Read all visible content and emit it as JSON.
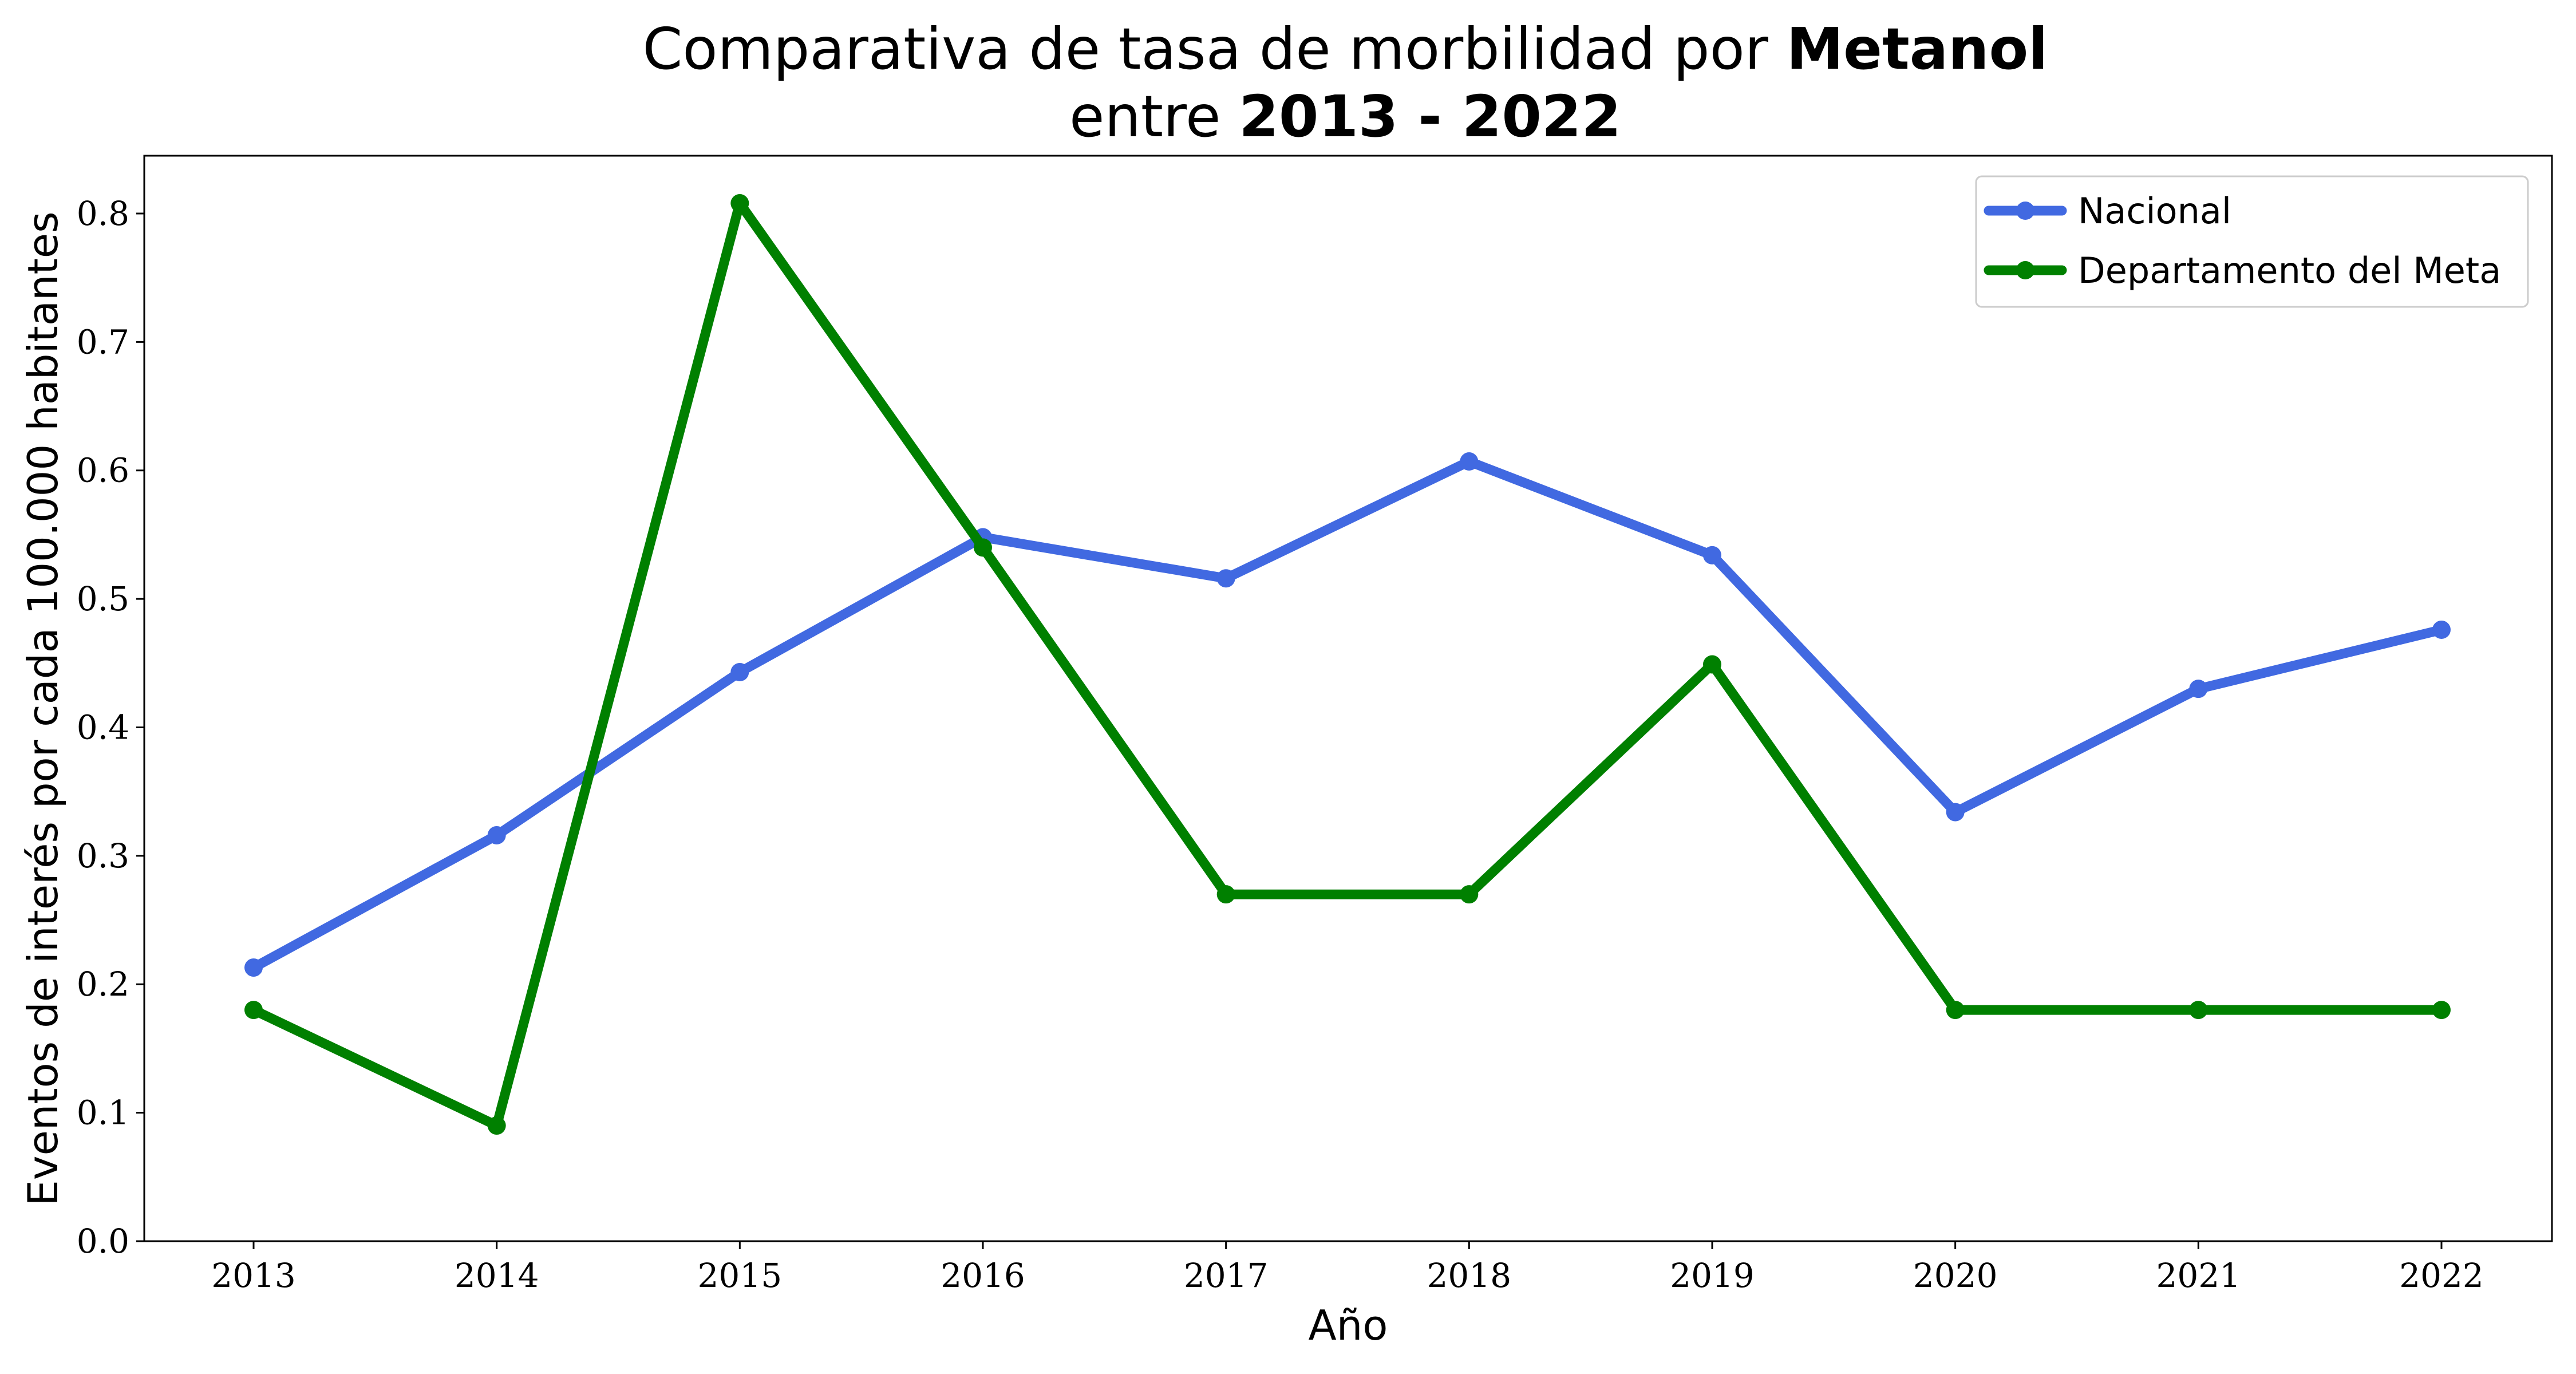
{
  "chart_data": {
    "type": "line",
    "title": {
      "line1_prefix": "Comparativa de tasa de morbilidad por ",
      "line1_bold": "Metanol",
      "line2_prefix": "entre ",
      "line2_bold": "2013 - 2022"
    },
    "xlabel": "Año",
    "ylabel": "Eventos de interés por cada 100.000 habitantes",
    "categories": [
      "2013",
      "2014",
      "2015",
      "2016",
      "2017",
      "2018",
      "2019",
      "2020",
      "2021",
      "2022"
    ],
    "ylim": [
      0.0,
      0.845
    ],
    "yticks": [
      "0.0",
      "0.1",
      "0.2",
      "0.3",
      "0.4",
      "0.5",
      "0.6",
      "0.7",
      "0.8"
    ],
    "grid": false,
    "legend_position": "top-right",
    "series": [
      {
        "name": "Nacional",
        "color": "#4169e1",
        "values": [
          0.213,
          0.316,
          0.443,
          0.548,
          0.516,
          0.607,
          0.534,
          0.334,
          0.43,
          0.476
        ]
      },
      {
        "name": "Departamento del Meta",
        "color": "#008000",
        "values": [
          0.18,
          0.09,
          0.808,
          0.54,
          0.27,
          0.27,
          0.449,
          0.18,
          0.18,
          0.18
        ]
      }
    ]
  }
}
